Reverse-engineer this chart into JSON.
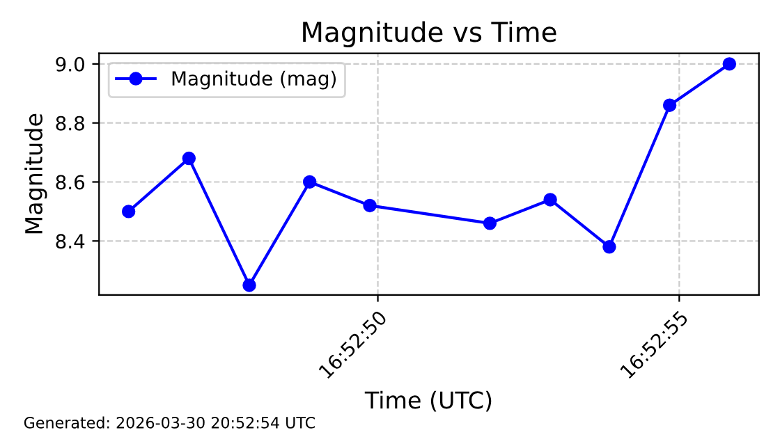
{
  "chart_data": {
    "type": "line",
    "title": "Magnitude vs Time",
    "xlabel": "Time (UTC)",
    "ylabel": "Magnitude",
    "x": [
      16.879408,
      16.879686,
      16.879964,
      16.880242,
      16.880519,
      16.881072,
      16.88135,
      16.881622,
      16.8819,
      16.882175
    ],
    "series": [
      {
        "name": "Magnitude (mag)",
        "color": "#0000ff",
        "values": [
          8.5,
          8.68,
          8.25,
          8.6,
          8.52,
          8.46,
          8.54,
          8.38,
          8.86,
          9.0
        ]
      }
    ],
    "xlim": [
      16.879272,
      16.882311
    ],
    "xticks": [
      {
        "value": 16.880556,
        "label": "16:52:50"
      },
      {
        "value": 16.881944,
        "label": "16:52:55"
      }
    ],
    "ylim": [
      8.217,
      9.036
    ],
    "yticks": [
      8.4,
      8.6,
      8.8,
      {
        "value": 9,
        "label": "9.0"
      }
    ],
    "grid": true,
    "legend": "top left",
    "marker": "circle",
    "line_style": "solid",
    "annotations": [
      "Generated: 2026-03-30 20:52:54 UTC"
    ]
  }
}
